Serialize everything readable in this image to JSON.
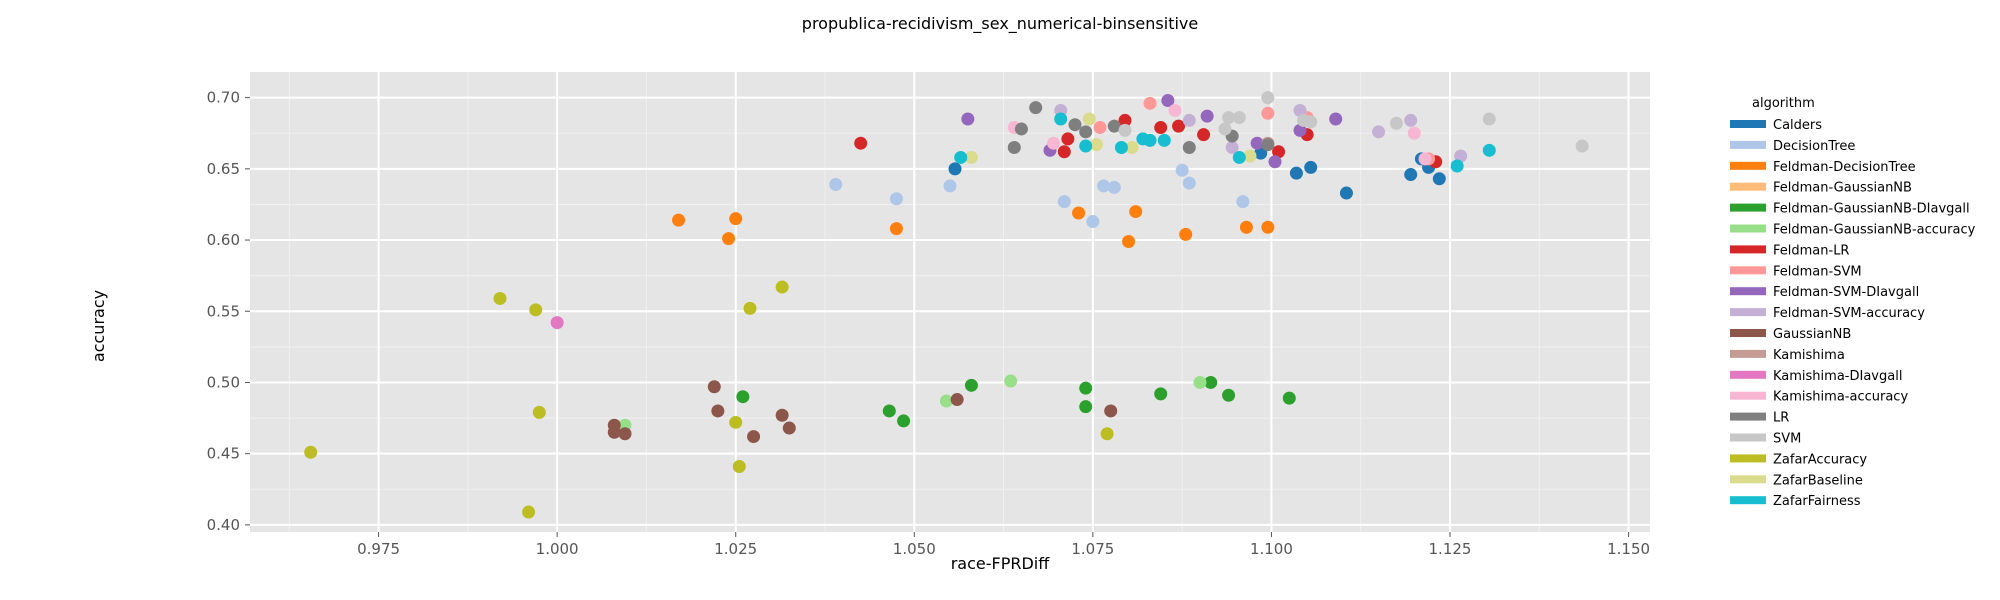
{
  "chart_data": {
    "type": "scatter",
    "title": "propublica-recidivism_sex_numerical-binsensitive",
    "xlabel": "race-FPRDiff",
    "ylabel": "accuracy",
    "xlim": [
      0.957,
      1.153
    ],
    "ylim": [
      0.395,
      0.718
    ],
    "xticks": [
      "0.975",
      "1.000",
      "1.025",
      "1.050",
      "1.075",
      "1.100",
      "1.125",
      "1.150"
    ],
    "yticks": [
      "0.40",
      "0.45",
      "0.50",
      "0.55",
      "0.60",
      "0.65",
      "0.70"
    ],
    "grid": true,
    "legend_title": "algorithm",
    "legend_position": "right",
    "series": [
      {
        "name": "Calders",
        "color": "#1f77b4",
        "points": [
          [
            1.0557,
            0.65
          ],
          [
            1.0985,
            0.661
          ],
          [
            1.1035,
            0.647
          ],
          [
            1.1055,
            0.651
          ],
          [
            1.1105,
            0.633
          ],
          [
            1.1195,
            0.646
          ],
          [
            1.121,
            0.657
          ],
          [
            1.122,
            0.651
          ],
          [
            1.1235,
            0.643
          ]
        ]
      },
      {
        "name": "DecisionTree",
        "color": "#aec7e8",
        "points": [
          [
            1.039,
            0.639
          ],
          [
            1.0475,
            0.629
          ],
          [
            1.055,
            0.638
          ],
          [
            1.071,
            0.627
          ],
          [
            1.075,
            0.613
          ],
          [
            1.0765,
            0.638
          ],
          [
            1.078,
            0.637
          ],
          [
            1.0875,
            0.649
          ],
          [
            1.0885,
            0.64
          ],
          [
            1.096,
            0.627
          ]
        ]
      },
      {
        "name": "Feldman-DecisionTree",
        "color": "#ff7f0e",
        "points": [
          [
            1.017,
            0.614
          ],
          [
            1.024,
            0.601
          ],
          [
            1.025,
            0.615
          ],
          [
            1.0475,
            0.608
          ],
          [
            1.073,
            0.619
          ],
          [
            1.08,
            0.599
          ],
          [
            1.081,
            0.62
          ],
          [
            1.088,
            0.604
          ],
          [
            1.0965,
            0.609
          ],
          [
            1.0995,
            0.609
          ]
        ]
      },
      {
        "name": "Feldman-GaussianNB",
        "color": "#ffbb78",
        "points": []
      },
      {
        "name": "Feldman-GaussianNB-DIavgall",
        "color": "#2ca02c",
        "points": [
          [
            1.026,
            0.49
          ],
          [
            1.0465,
            0.48
          ],
          [
            1.0485,
            0.473
          ],
          [
            1.058,
            0.498
          ],
          [
            1.074,
            0.496
          ],
          [
            1.074,
            0.483
          ],
          [
            1.0845,
            0.492
          ],
          [
            1.0915,
            0.5
          ],
          [
            1.094,
            0.491
          ],
          [
            1.1025,
            0.489
          ]
        ]
      },
      {
        "name": "Feldman-GaussianNB-accuracy",
        "color": "#98df8a",
        "points": [
          [
            1.0095,
            0.47
          ],
          [
            1.0545,
            0.487
          ],
          [
            1.0635,
            0.501
          ],
          [
            1.09,
            0.5
          ]
        ]
      },
      {
        "name": "Feldman-LR",
        "color": "#d62728",
        "points": [
          [
            1.0425,
            0.668
          ],
          [
            1.071,
            0.662
          ],
          [
            1.0715,
            0.671
          ],
          [
            1.0795,
            0.684
          ],
          [
            1.0845,
            0.679
          ],
          [
            1.087,
            0.68
          ],
          [
            1.0905,
            0.674
          ],
          [
            1.101,
            0.662
          ],
          [
            1.105,
            0.674
          ],
          [
            1.123,
            0.655
          ]
        ]
      },
      {
        "name": "Feldman-SVM",
        "color": "#ff9896",
        "points": [
          [
            1.076,
            0.679
          ],
          [
            1.083,
            0.696
          ],
          [
            1.0995,
            0.689
          ],
          [
            1.105,
            0.686
          ],
          [
            1.122,
            0.657
          ]
        ]
      },
      {
        "name": "Feldman-SVM-DIavgall",
        "color": "#9467bd",
        "points": [
          [
            1.0575,
            0.685
          ],
          [
            1.069,
            0.663
          ],
          [
            1.0855,
            0.698
          ],
          [
            1.091,
            0.687
          ],
          [
            1.098,
            0.668
          ],
          [
            1.1005,
            0.655
          ],
          [
            1.104,
            0.677
          ],
          [
            1.109,
            0.685
          ]
        ]
      },
      {
        "name": "Feldman-SVM-accuracy",
        "color": "#c5b0d5",
        "points": [
          [
            1.0705,
            0.691
          ],
          [
            1.0885,
            0.684
          ],
          [
            1.0945,
            0.665
          ],
          [
            1.104,
            0.691
          ],
          [
            1.115,
            0.676
          ],
          [
            1.1195,
            0.684
          ],
          [
            1.1265,
            0.659
          ]
        ]
      },
      {
        "name": "GaussianNB",
        "color": "#8c564b",
        "points": [
          [
            1.008,
            0.47
          ],
          [
            1.008,
            0.465
          ],
          [
            1.0095,
            0.464
          ],
          [
            1.022,
            0.497
          ],
          [
            1.0225,
            0.48
          ],
          [
            1.0275,
            0.462
          ],
          [
            1.0315,
            0.477
          ],
          [
            1.0325,
            0.468
          ],
          [
            1.056,
            0.488
          ],
          [
            1.0775,
            0.48
          ]
        ]
      },
      {
        "name": "Kamishima",
        "color": "#c49c94",
        "points": [
          [
            1.0995,
            0.668
          ]
        ]
      },
      {
        "name": "Kamishima-DIavgall",
        "color": "#e377c2",
        "points": [
          [
            1.0,
            0.542
          ]
        ]
      },
      {
        "name": "Kamishima-accuracy",
        "color": "#f7b6d2",
        "points": [
          [
            1.064,
            0.679
          ],
          [
            1.0695,
            0.668
          ],
          [
            1.0865,
            0.691
          ],
          [
            1.12,
            0.675
          ],
          [
            1.1215,
            0.657
          ]
        ]
      },
      {
        "name": "LR",
        "color": "#7f7f7f",
        "points": [
          [
            1.064,
            0.665
          ],
          [
            1.065,
            0.678
          ],
          [
            1.067,
            0.693
          ],
          [
            1.0725,
            0.681
          ],
          [
            1.074,
            0.676
          ],
          [
            1.078,
            0.68
          ],
          [
            1.0885,
            0.665
          ],
          [
            1.0945,
            0.673
          ],
          [
            1.0995,
            0.667
          ]
        ]
      },
      {
        "name": "SVM",
        "color": "#c7c7c7",
        "points": [
          [
            1.0795,
            0.677
          ],
          [
            1.0935,
            0.678
          ],
          [
            1.094,
            0.686
          ],
          [
            1.0955,
            0.686
          ],
          [
            1.0995,
            0.7
          ],
          [
            1.1045,
            0.684
          ],
          [
            1.1055,
            0.683
          ],
          [
            1.1175,
            0.682
          ],
          [
            1.1305,
            0.685
          ],
          [
            1.1435,
            0.666
          ]
        ]
      },
      {
        "name": "ZafarAccuracy",
        "color": "#bcbd22",
        "points": [
          [
            0.9655,
            0.451
          ],
          [
            0.992,
            0.559
          ],
          [
            0.996,
            0.409
          ],
          [
            0.997,
            0.551
          ],
          [
            0.9975,
            0.479
          ],
          [
            1.025,
            0.472
          ],
          [
            1.0255,
            0.441
          ],
          [
            1.027,
            0.552
          ],
          [
            1.0315,
            0.567
          ],
          [
            1.077,
            0.464
          ]
        ]
      },
      {
        "name": "ZafarBaseline",
        "color": "#dbdb8d",
        "points": [
          [
            1.058,
            0.658
          ],
          [
            1.0745,
            0.685
          ],
          [
            1.0755,
            0.667
          ],
          [
            1.0805,
            0.665
          ],
          [
            1.097,
            0.659
          ]
        ]
      },
      {
        "name": "ZafarFairness",
        "color": "#17becf",
        "points": [
          [
            1.0565,
            0.658
          ],
          [
            1.0705,
            0.685
          ],
          [
            1.074,
            0.666
          ],
          [
            1.079,
            0.665
          ],
          [
            1.082,
            0.671
          ],
          [
            1.083,
            0.67
          ],
          [
            1.085,
            0.67
          ],
          [
            1.0955,
            0.658
          ],
          [
            1.126,
            0.652
          ],
          [
            1.1305,
            0.663
          ]
        ]
      }
    ]
  }
}
